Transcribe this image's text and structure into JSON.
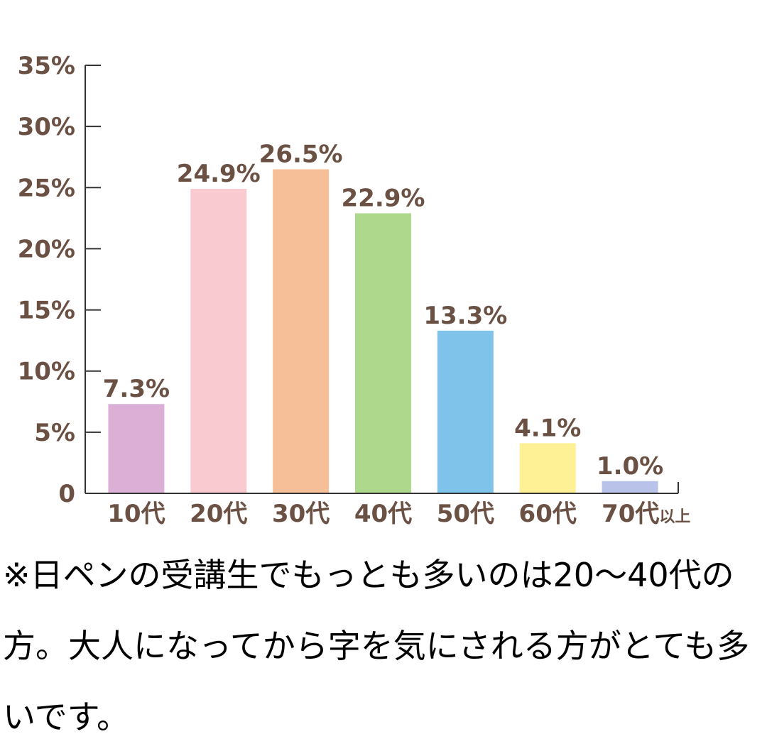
{
  "chart_data": {
    "type": "bar",
    "categories": [
      "10代",
      "20代",
      "30代",
      "40代",
      "50代",
      "60代",
      "70代以上"
    ],
    "values": [
      7.3,
      24.9,
      26.5,
      22.9,
      13.3,
      4.1,
      1.0
    ],
    "data_labels": [
      "7.3%",
      "24.9%",
      "26.5%",
      "22.9%",
      "13.3%",
      "4.1%",
      "1.0%"
    ],
    "colors": [
      "#dcb0d6",
      "#f9cbd0",
      "#f7bf98",
      "#aed98c",
      "#80c3ea",
      "#fdf095",
      "#b9c3ea"
    ],
    "yticks": [
      {
        "value": 0,
        "label": "0"
      },
      {
        "value": 5,
        "label": "5%"
      },
      {
        "value": 10,
        "label": "10%"
      },
      {
        "value": 15,
        "label": "15%"
      },
      {
        "value": 20,
        "label": "20%"
      },
      {
        "value": 25,
        "label": "25%"
      },
      {
        "value": 30,
        "label": "30%"
      },
      {
        "value": 35,
        "label": "35%"
      }
    ],
    "ylim": [
      0,
      35
    ],
    "title": "",
    "xlabel": "",
    "ylabel": "",
    "grid": false,
    "label_color": "#6b5044",
    "axis_color": "#333333"
  },
  "note": {
    "text": "※日ペンの受講生でもっとも多いのは20〜40代の方。大人になってから字を気にされる方がとても多いです。"
  }
}
